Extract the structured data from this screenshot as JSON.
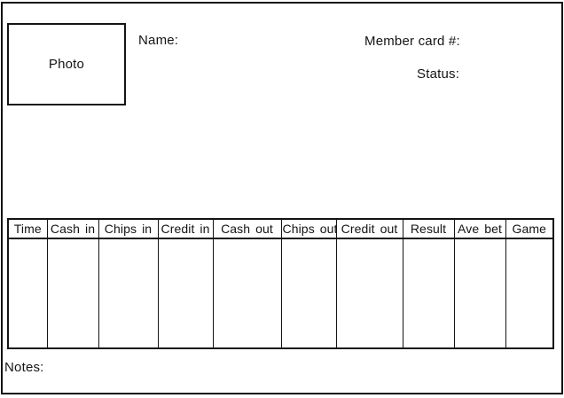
{
  "form": {
    "photo_label": "Photo",
    "name_label": "Name:",
    "member_card_label": "Member card #:",
    "status_label": "Status:",
    "notes_label": "Notes:"
  },
  "table": {
    "columns": [
      "Time",
      "Cash in",
      "Chips in",
      "Credit in",
      "Cash out",
      "Chips out",
      "Credit out",
      "Result",
      "Ave bet",
      "Game"
    ],
    "rows": [
      [
        "",
        "",
        "",
        "",
        "",
        "",
        "",
        "",
        "",
        ""
      ]
    ]
  },
  "colors": {
    "border": "#141414",
    "text": "#141414",
    "background": "#ffffff"
  }
}
